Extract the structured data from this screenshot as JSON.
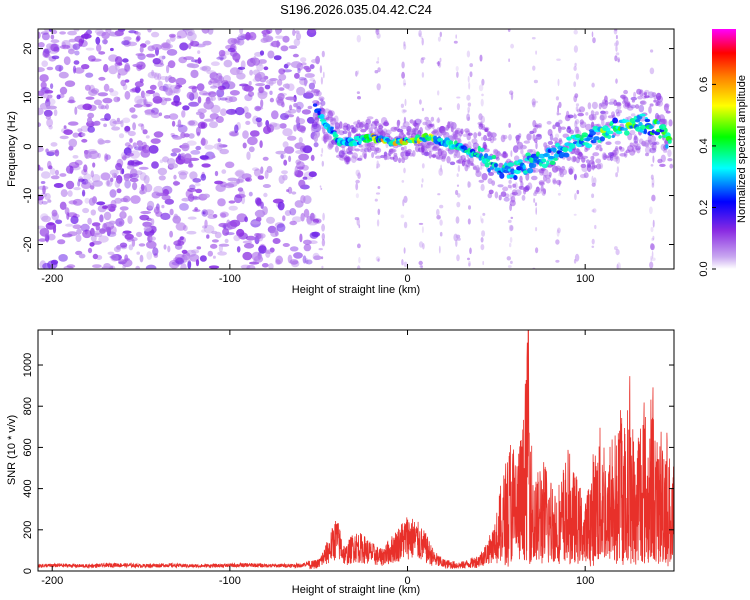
{
  "title": "S196.2026.035.04.42.C24",
  "chart_data": [
    {
      "type": "heatmap",
      "xlabel": "Height of straight line (km)",
      "ylabel": "Frequency (Hz)",
      "xlim": [
        -208,
        150
      ],
      "ylim": [
        -25,
        24
      ],
      "x_ticks": [
        -200,
        -100,
        0,
        100
      ],
      "y_ticks": [
        -20,
        -10,
        0,
        10,
        20
      ],
      "colorbar": {
        "label": "Normalized spectral amplitude",
        "range": [
          0.0,
          0.78
        ],
        "ticks": [
          0.0,
          0.2,
          0.4,
          0.6
        ],
        "tick_labels": [
          "0.0",
          "0.2",
          "0.4",
          "0.6"
        ],
        "colormap": [
          "#ffffff",
          "#8a2be2",
          "#0000ff",
          "#00ffff",
          "#00ff00",
          "#ffff00",
          "#ff8000",
          "#ff0000",
          "#ff00ff"
        ]
      },
      "track": {
        "x": [
          -52,
          -45,
          -38,
          -30,
          -20,
          -10,
          0,
          10,
          20,
          30,
          40,
          50,
          60,
          70,
          80,
          90,
          100,
          110,
          120,
          130,
          140,
          148
        ],
        "y": [
          8,
          4,
          1,
          1,
          2,
          1,
          1,
          2,
          1,
          0,
          -2,
          -4,
          -5,
          -3,
          -2,
          0,
          1,
          3,
          4,
          5,
          4,
          1
        ]
      }
    },
    {
      "type": "line",
      "xlabel": "Height of straight line (km)",
      "ylabel": "SNR (10 * v/v)",
      "xlim": [
        -208,
        150
      ],
      "ylim": [
        0,
        1170
      ],
      "x_ticks": [
        -200,
        -100,
        0,
        100
      ],
      "y_ticks": [
        0,
        200,
        400,
        600,
        800,
        1000
      ],
      "color": "#e8302a",
      "series": [
        {
          "x": [
            -208,
            -195,
            -180,
            -165,
            -150,
            -135,
            -120,
            -105,
            -90,
            -75,
            -60,
            -50,
            -45,
            -40,
            -35,
            -30,
            -25,
            -20,
            -15,
            -10,
            -5,
            0,
            5,
            10,
            15,
            20,
            25,
            30,
            35,
            40,
            45,
            50,
            55,
            58,
            62,
            65,
            68,
            70,
            72,
            75,
            80,
            85,
            90,
            95,
            100,
            105,
            108,
            110,
            113,
            115,
            118,
            120,
            123,
            125,
            128,
            130,
            133,
            135,
            138,
            140,
            143,
            145,
            148,
            150
          ],
          "y": [
            30,
            32,
            28,
            35,
            30,
            33,
            29,
            31,
            34,
            30,
            32,
            60,
            150,
            270,
            120,
            200,
            180,
            140,
            110,
            160,
            220,
            280,
            250,
            190,
            100,
            60,
            50,
            45,
            60,
            80,
            150,
            250,
            500,
            640,
            560,
            700,
            1170,
            600,
            420,
            520,
            460,
            380,
            560,
            420,
            300,
            560,
            660,
            740,
            450,
            800,
            580,
            920,
            600,
            980,
            520,
            740,
            880,
            620,
            940,
            560,
            700,
            760,
            500,
            470
          ]
        }
      ]
    }
  ]
}
